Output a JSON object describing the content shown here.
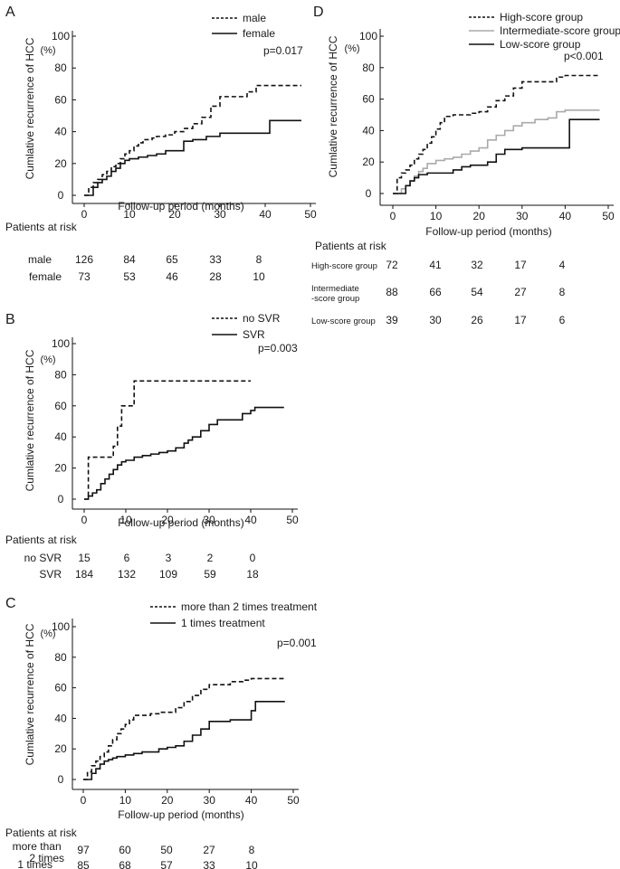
{
  "chart_data": [
    {
      "panel": "A",
      "type": "line",
      "step": true,
      "title": "",
      "xlabel": "Follow-up period (months)",
      "ylabel": "Cumlative recurrence of HCC",
      "yunit": "(%)",
      "xlim": [
        0,
        50
      ],
      "ylim": [
        0,
        100
      ],
      "xticks": [
        0,
        10,
        20,
        30,
        40,
        50
      ],
      "yticks": [
        0,
        20,
        40,
        60,
        80,
        100
      ],
      "pvalue": "p=0.017",
      "series": [
        {
          "name": "male",
          "style": "dashed",
          "x": [
            0,
            1,
            2,
            3,
            4,
            5,
            6,
            7,
            8,
            9,
            10,
            11,
            12,
            13,
            14,
            15,
            16,
            18,
            20,
            22,
            24,
            26,
            28,
            30,
            33,
            36,
            38,
            40,
            48
          ],
          "y": [
            0,
            5,
            8,
            10,
            13,
            15,
            18,
            20,
            23,
            26,
            28,
            31,
            33,
            35,
            35,
            36,
            37,
            38,
            40,
            42,
            45,
            49,
            56,
            62,
            62,
            65,
            69,
            69,
            69
          ]
        },
        {
          "name": "female",
          "style": "solid",
          "x": [
            0,
            2,
            3,
            4,
            5,
            6,
            7,
            8,
            9,
            10,
            12,
            14,
            16,
            18,
            20,
            22,
            24,
            27,
            30,
            35,
            40,
            41,
            48
          ],
          "y": [
            0,
            5,
            8,
            10,
            12,
            15,
            17,
            20,
            22,
            23,
            24,
            25,
            26,
            28,
            28,
            34,
            35,
            37,
            39,
            39,
            39,
            47,
            47
          ]
        }
      ],
      "risk_table": {
        "title": "Patients at risk",
        "columns": [
          "0",
          "10",
          "20",
          "30",
          "40"
        ],
        "rows": [
          {
            "label": "male",
            "values": [
              "126",
              "84",
              "65",
              "33",
              "8"
            ]
          },
          {
            "label": "female",
            "values": [
              "73",
              "53",
              "46",
              "28",
              "10"
            ]
          }
        ]
      }
    },
    {
      "panel": "B",
      "type": "line",
      "step": true,
      "title": "",
      "xlabel": "Follow-up period (months)",
      "ylabel": "Cumlative recurrence of HCC",
      "yunit": "(%)",
      "xlim": [
        0,
        50
      ],
      "ylim": [
        0,
        100
      ],
      "xticks": [
        0,
        10,
        20,
        30,
        40,
        50
      ],
      "yticks": [
        0,
        20,
        40,
        60,
        80,
        100
      ],
      "pvalue": "p=0.003",
      "series": [
        {
          "name": "no SVR",
          "style": "dashed",
          "x": [
            0,
            1,
            5,
            7,
            8,
            9,
            10,
            12,
            15,
            20,
            30,
            40
          ],
          "y": [
            0,
            27,
            27,
            34,
            47,
            60,
            60,
            76,
            76,
            76,
            76,
            76
          ]
        },
        {
          "name": "SVR",
          "style": "solid",
          "x": [
            0,
            1,
            2,
            3,
            4,
            5,
            6,
            7,
            8,
            9,
            10,
            12,
            14,
            16,
            18,
            20,
            22,
            24,
            25,
            26,
            28,
            30,
            32,
            35,
            38,
            40,
            41,
            48
          ],
          "y": [
            0,
            2,
            4,
            6,
            10,
            13,
            16,
            19,
            22,
            24,
            25,
            27,
            28,
            29,
            30,
            31,
            33,
            36,
            38,
            40,
            44,
            48,
            51,
            51,
            55,
            57,
            59,
            59
          ]
        }
      ],
      "risk_table": {
        "title": "Patients at risk",
        "columns": [
          "0",
          "10",
          "20",
          "30",
          "40"
        ],
        "rows": [
          {
            "label": "no SVR",
            "values": [
              "15",
              "6",
              "3",
              "2",
              "0"
            ]
          },
          {
            "label": "SVR",
            "values": [
              "184",
              "132",
              "109",
              "59",
              "18"
            ]
          }
        ]
      }
    },
    {
      "panel": "C",
      "type": "line",
      "step": true,
      "title": "",
      "xlabel": "Follow-up period (months)",
      "ylabel": "Cumlative recurrence of HCC",
      "yunit": "(%)",
      "xlim": [
        0,
        50
      ],
      "ylim": [
        0,
        100
      ],
      "xticks": [
        0,
        10,
        20,
        30,
        40,
        50
      ],
      "yticks": [
        0,
        20,
        40,
        60,
        80,
        100
      ],
      "pvalue": "p=0.001",
      "series": [
        {
          "name": "more than 2 times treatment",
          "style": "dashed",
          "x": [
            0,
            1,
            2,
            3,
            4,
            5,
            6,
            7,
            8,
            9,
            10,
            11,
            12,
            14,
            16,
            18,
            20,
            22,
            24,
            26,
            28,
            30,
            33,
            35,
            38,
            40,
            48
          ],
          "y": [
            0,
            5,
            9,
            12,
            15,
            18,
            22,
            26,
            30,
            33,
            36,
            39,
            42,
            42,
            43,
            44,
            44,
            47,
            51,
            55,
            59,
            62,
            62,
            64,
            65,
            66,
            66
          ]
        },
        {
          "name": "1 times treatment",
          "style": "solid",
          "x": [
            0,
            2,
            3,
            4,
            5,
            6,
            7,
            8,
            9,
            10,
            12,
            14,
            16,
            18,
            20,
            22,
            24,
            26,
            28,
            30,
            35,
            38,
            40,
            41,
            48
          ],
          "y": [
            0,
            4,
            7,
            10,
            12,
            13,
            14,
            15,
            15,
            16,
            17,
            18,
            18,
            20,
            21,
            22,
            25,
            29,
            33,
            38,
            39,
            39,
            45,
            51,
            51
          ]
        }
      ],
      "risk_table": {
        "title": "Patients at risk",
        "columns": [
          "0",
          "10",
          "20",
          "30",
          "40"
        ],
        "rows": [
          {
            "label": "more than 2 times",
            "values": [
              "97",
              "60",
              "50",
              "27",
              "8"
            ]
          },
          {
            "label": "1 times",
            "values": [
              "85",
              "68",
              "57",
              "33",
              "10"
            ]
          }
        ]
      }
    },
    {
      "panel": "D",
      "type": "line",
      "step": true,
      "title": "",
      "xlabel": "Follow-up period (months)",
      "ylabel": "Cumlative recurrence of HCC",
      "yunit": "(%)",
      "xlim": [
        0,
        50
      ],
      "ylim": [
        0,
        100
      ],
      "xticks": [
        0,
        10,
        20,
        30,
        40,
        50
      ],
      "yticks": [
        0,
        20,
        40,
        60,
        80,
        100
      ],
      "pvalue": "p<0.001",
      "series": [
        {
          "name": "High-score group",
          "style": "dashed",
          "color": "#111111",
          "x": [
            0,
            1,
            2,
            3,
            4,
            5,
            6,
            7,
            8,
            9,
            10,
            11,
            12,
            14,
            16,
            18,
            20,
            22,
            24,
            26,
            28,
            30,
            33,
            36,
            38,
            40,
            48
          ],
          "y": [
            0,
            10,
            13,
            15,
            18,
            22,
            25,
            28,
            32,
            36,
            41,
            45,
            49,
            50,
            50,
            51,
            52,
            55,
            59,
            62,
            67,
            71,
            71,
            71,
            74,
            75,
            75
          ]
        },
        {
          "name": "Intermediate-score group",
          "style": "solid",
          "color": "#aaaaaa",
          "x": [
            0,
            2,
            3,
            4,
            5,
            6,
            7,
            8,
            10,
            12,
            14,
            16,
            18,
            20,
            22,
            24,
            26,
            28,
            30,
            33,
            36,
            38,
            40,
            48
          ],
          "y": [
            0,
            3,
            5,
            8,
            11,
            14,
            16,
            19,
            21,
            22,
            23,
            25,
            27,
            29,
            34,
            37,
            40,
            43,
            45,
            47,
            48,
            52,
            53,
            53
          ]
        },
        {
          "name": "Low-score group",
          "style": "solid",
          "color": "#111111",
          "x": [
            0,
            3,
            4,
            5,
            6,
            8,
            10,
            14,
            16,
            18,
            20,
            22,
            24,
            26,
            28,
            30,
            35,
            40,
            41,
            48
          ],
          "y": [
            0,
            5,
            8,
            10,
            12,
            13,
            13,
            15,
            17,
            18,
            18,
            20,
            25,
            28,
            28,
            29,
            29,
            29,
            47,
            47
          ]
        }
      ],
      "risk_table": {
        "title": "Patients at risk",
        "columns": [
          "0",
          "10",
          "20",
          "30",
          "40"
        ],
        "rows": [
          {
            "label": "High-score group",
            "values": [
              "72",
              "41",
              "32",
              "17",
              "4"
            ]
          },
          {
            "label": "Intermediate -score group",
            "values": [
              "88",
              "66",
              "54",
              "27",
              "8"
            ]
          },
          {
            "label": "Low-score group",
            "values": [
              "39",
              "30",
              "26",
              "17",
              "6"
            ]
          }
        ]
      }
    }
  ]
}
